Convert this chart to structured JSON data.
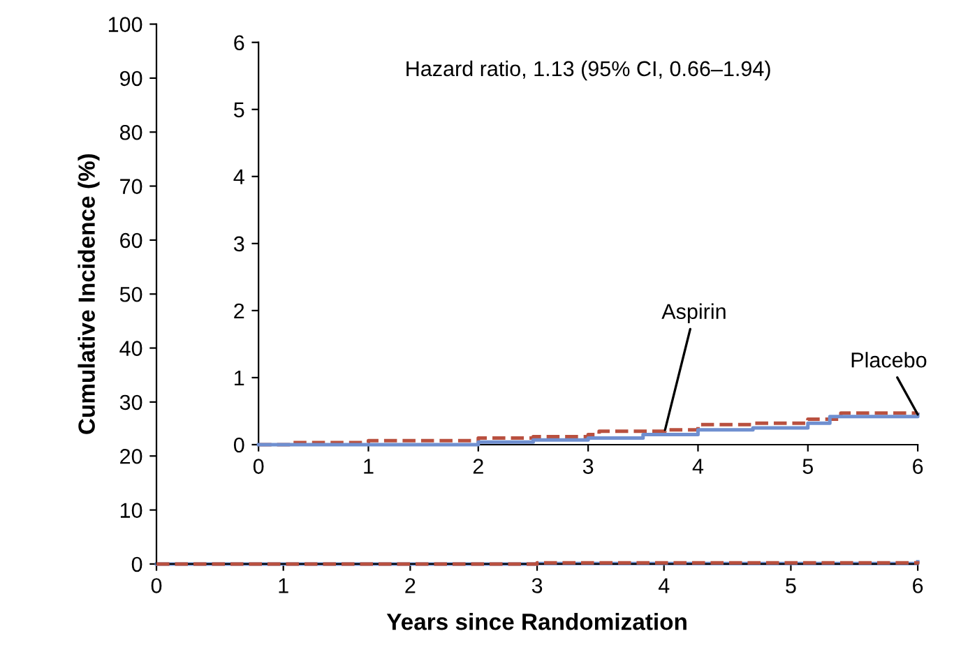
{
  "chart_data": [
    {
      "type": "step",
      "xlabel": "Years since Randomization",
      "ylabel": "Cumulative Incidence (%)",
      "xlim": [
        0,
        6
      ],
      "ylim": [
        0,
        100
      ],
      "xticks": [
        0,
        1,
        2,
        3,
        4,
        5,
        6
      ],
      "yticks": [
        0,
        10,
        20,
        30,
        40,
        50,
        60,
        70,
        80,
        90,
        100
      ],
      "grid": false,
      "legend": false,
      "series": [
        {
          "color": "#6f8fd0",
          "line_style": "solid",
          "x": [
            0,
            3,
            6
          ],
          "values": [
            0,
            0.1,
            0.4
          ]
        },
        {
          "color": "#b9503f",
          "line_style": "dashed",
          "x": [
            0,
            3,
            6
          ],
          "values": [
            0,
            0.2,
            0.5
          ]
        }
      ]
    },
    {
      "type": "step",
      "xlim": [
        0,
        6
      ],
      "ylim": [
        0,
        6
      ],
      "xticks": [
        0,
        1,
        2,
        3,
        4,
        5,
        6
      ],
      "yticks": [
        0,
        1,
        2,
        3,
        4,
        5,
        6
      ],
      "grid": false,
      "legend": false,
      "annotations": [
        "Hazard ratio, 1.13 (95% CI, 0.66–1.94)"
      ],
      "series": [
        {
          "name": "Aspirin",
          "color": "#b9503f",
          "line_style": "dashed",
          "x": [
            0,
            0.3,
            1,
            2,
            2.5,
            3,
            3.1,
            3.7,
            4,
            4.5,
            5,
            5.3,
            6
          ],
          "values": [
            0,
            0.03,
            0.06,
            0.1,
            0.12,
            0.15,
            0.2,
            0.22,
            0.3,
            0.32,
            0.38,
            0.47,
            0.48
          ]
        },
        {
          "name": "Placebo",
          "color": "#6f8fd0",
          "line_style": "solid",
          "x": [
            0,
            2,
            2.5,
            3,
            3.5,
            4,
            4.5,
            5,
            5.2,
            6
          ],
          "values": [
            0,
            0.04,
            0.07,
            0.1,
            0.15,
            0.22,
            0.25,
            0.32,
            0.42,
            0.45
          ]
        }
      ]
    }
  ]
}
